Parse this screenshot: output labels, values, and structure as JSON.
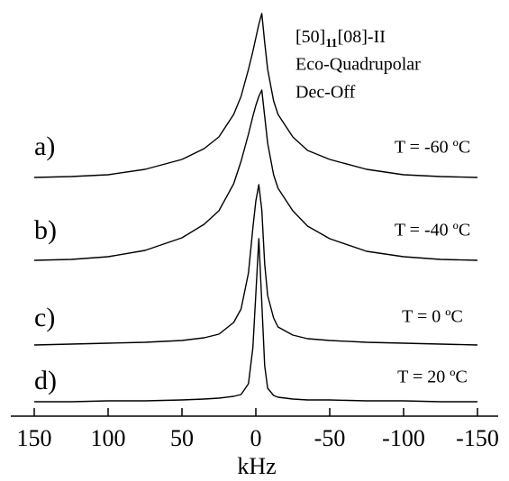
{
  "chart_data": {
    "type": "line",
    "header": {
      "sample": {
        "before": "[50]",
        "sub": "11",
        "after": "[08]-II"
      },
      "line2": "Eco-Quadrupolar",
      "line3": "Dec-Off"
    },
    "x_label": "kHz",
    "x": [
      150,
      125,
      100,
      75,
      50,
      35,
      25,
      15,
      10,
      5,
      2,
      0,
      -2,
      -4,
      -6,
      -8,
      -12,
      -15,
      -25,
      -35,
      -50,
      -75,
      -100,
      -125,
      -150
    ],
    "xlim": [
      150,
      -150
    ],
    "xticks": [
      150,
      100,
      50,
      0,
      -50,
      -100,
      -150
    ],
    "color": "#000000",
    "series": [
      {
        "name": "a)",
        "label": "T = -60 ºC",
        "values": [
          0,
          1,
          3,
          9,
          20,
          32,
          45,
          70,
          90,
          120,
          140,
          155,
          170,
          182,
          150,
          120,
          85,
          70,
          45,
          30,
          20,
          9,
          3,
          1,
          0
        ]
      },
      {
        "name": "b)",
        "label": "T = -40 ºC",
        "values": [
          0,
          1,
          4,
          11,
          25,
          40,
          55,
          85,
          110,
          140,
          160,
          172,
          182,
          189,
          160,
          130,
          95,
          80,
          55,
          38,
          24,
          10,
          4,
          1,
          0
        ]
      },
      {
        "name": "c)",
        "label": "T =  0 ºC",
        "values": [
          0,
          1,
          2,
          3,
          5,
          8,
          12,
          25,
          40,
          80,
          130,
          160,
          178,
          150,
          90,
          55,
          30,
          20,
          11,
          7,
          5,
          3,
          2,
          1,
          0
        ]
      },
      {
        "name": "d)",
        "label": "T =  20 ºC",
        "values": [
          0,
          0,
          1,
          1,
          2,
          3,
          4,
          6,
          8,
          20,
          60,
          120,
          181,
          110,
          40,
          15,
          7,
          5,
          3,
          2,
          2,
          1,
          1,
          0,
          0
        ]
      }
    ]
  }
}
